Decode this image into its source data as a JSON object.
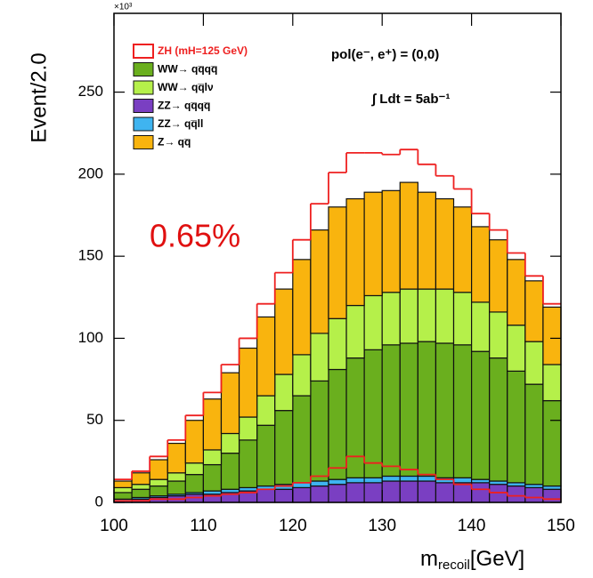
{
  "chart_data": {
    "type": "histogram",
    "ylabel": "Event/2.0",
    "y_multiplier": "×10³",
    "xlabel": {
      "main": "m",
      "sub": "recoil",
      "unit": "[GeV]"
    },
    "annotations": [
      "pol(e⁻, e⁺) = (0,0)",
      "∫ Ldt = 5ab⁻¹",
      "0.65%"
    ],
    "bins": [
      100,
      102,
      104,
      106,
      108,
      110,
      112,
      114,
      116,
      118,
      120,
      122,
      124,
      126,
      128,
      130,
      132,
      134,
      136,
      138,
      140,
      142,
      144,
      146,
      148,
      150
    ],
    "xlim": [
      100,
      150
    ],
    "xticks": [
      100,
      110,
      120,
      130,
      140,
      150
    ],
    "ylim": [
      0,
      298
    ],
    "yticks": [
      0,
      50,
      100,
      150,
      200,
      250
    ],
    "stacked": true,
    "series": [
      {
        "name": "ZZ→ qq̅qq̅",
        "color": "#7a3fc2",
        "values": [
          1,
          2,
          3,
          4,
          5,
          5,
          6,
          7,
          8,
          8,
          9,
          10,
          11,
          12,
          12,
          13,
          13,
          13,
          12,
          12,
          12,
          11,
          10,
          9,
          8
        ]
      },
      {
        "name": "ZZ→ qq̅ll",
        "color": "#3fb4f0",
        "values": [
          1,
          1,
          1,
          1,
          1,
          2,
          2,
          2,
          2,
          3,
          3,
          3,
          3,
          3,
          3,
          3,
          3,
          3,
          3,
          3,
          2,
          2,
          2,
          2,
          2
        ]
      },
      {
        "name": "WW→ qq̅qq̅",
        "color": "#6aaf1e",
        "values": [
          4,
          5,
          6,
          8,
          11,
          16,
          22,
          29,
          37,
          45,
          53,
          61,
          67,
          73,
          78,
          80,
          81,
          82,
          82,
          81,
          78,
          75,
          68,
          61,
          52
        ]
      },
      {
        "name": "WW→ qq̅lν",
        "color": "#b5f04a",
        "values": [
          3,
          3,
          4,
          5,
          7,
          9,
          12,
          14,
          18,
          22,
          25,
          29,
          31,
          32,
          33,
          32,
          33,
          32,
          33,
          32,
          30,
          28,
          28,
          26,
          22
        ]
      },
      {
        "name": "Z→  qq̅",
        "color": "#f9b40e",
        "values": [
          4,
          7,
          12,
          18,
          26,
          31,
          37,
          42,
          48,
          52,
          58,
          63,
          68,
          65,
          63,
          62,
          65,
          59,
          55,
          52,
          46,
          44,
          40,
          37,
          35
        ]
      },
      {
        "name": "ZH (mH=125 GeV)",
        "color": "#ee2020",
        "outline": true,
        "values": [
          1,
          1,
          2,
          2,
          3,
          4,
          5,
          6,
          8,
          10,
          12,
          16,
          21,
          28,
          24,
          22,
          20,
          17,
          14,
          11,
          8,
          6,
          4,
          3,
          2
        ]
      }
    ]
  }
}
